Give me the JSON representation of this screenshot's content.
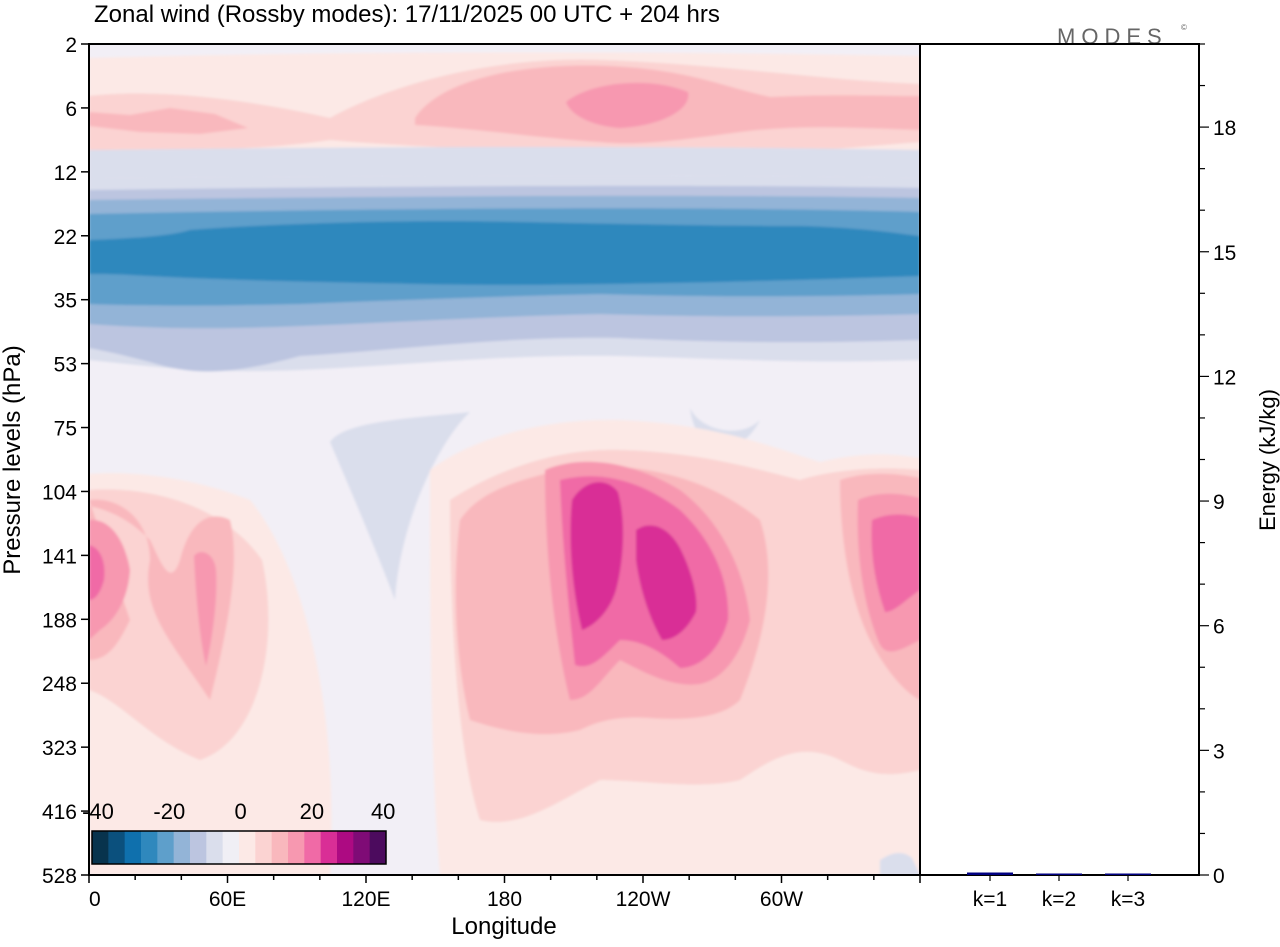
{
  "header": {
    "title": "Zonal wind (Rossby modes):  17/11/2025  00 UTC  + 204 hrs",
    "brand": "MODES",
    "brand_mark": "©"
  },
  "colorbar": {
    "tick_labels": [
      "-40",
      "-20",
      "0",
      "20",
      "40"
    ],
    "colors": [
      "#08334d",
      "#0b507d",
      "#0f70ad",
      "#2f88bd",
      "#5e9fcb",
      "#93b4d7",
      "#bcc5e0",
      "#dadeec",
      "#f0eff5",
      "#fce9e6",
      "#fbd3d2",
      "#f9b8bd",
      "#f798b0",
      "#f06aa6",
      "#d92e96",
      "#ad0a82",
      "#7f0b76",
      "#4c0b5e"
    ]
  },
  "chart_data": [
    {
      "type": "heatmap",
      "title": "Zonal wind (Rossby modes):  17/11/2025  00 UTC  + 204 hrs",
      "xlabel": "Longitude",
      "ylabel": "Pressure levels (hPa)",
      "x_tick_labels": [
        "0",
        "60E",
        "120E",
        "180",
        "120W",
        "60W"
      ],
      "y_tick_labels": [
        "2",
        "6",
        "12",
        "22",
        "35",
        "53",
        "75",
        "104",
        "141",
        "188",
        "248",
        "323",
        "416",
        "528"
      ],
      "colorbar_range": [
        -40,
        40
      ],
      "features": [
        {
          "name": "westward jet",
          "levels": "12-53 hPa",
          "approx_value": -25
        },
        {
          "name": "eastward band",
          "levels": "2-12 hPa",
          "approx_value": 12
        },
        {
          "name": "eastward maxima",
          "levels": "104-248 hPa",
          "longitudes": [
            "0",
            "180-120W",
            "30W"
          ],
          "approx_value": 30
        }
      ]
    },
    {
      "type": "bar",
      "ylabel": "Energy (kJ/kg)",
      "categories": [
        "k=1",
        "k=2",
        "k=3"
      ],
      "values": [
        0.06,
        0.03,
        0.02
      ],
      "ylim": [
        0,
        20
      ],
      "y_tick_labels": [
        "0",
        "3",
        "6",
        "9",
        "12",
        "15",
        "18"
      ],
      "y_ticks": [
        0,
        3,
        6,
        9,
        12,
        15,
        18
      ],
      "bar_color": "#000080"
    }
  ]
}
